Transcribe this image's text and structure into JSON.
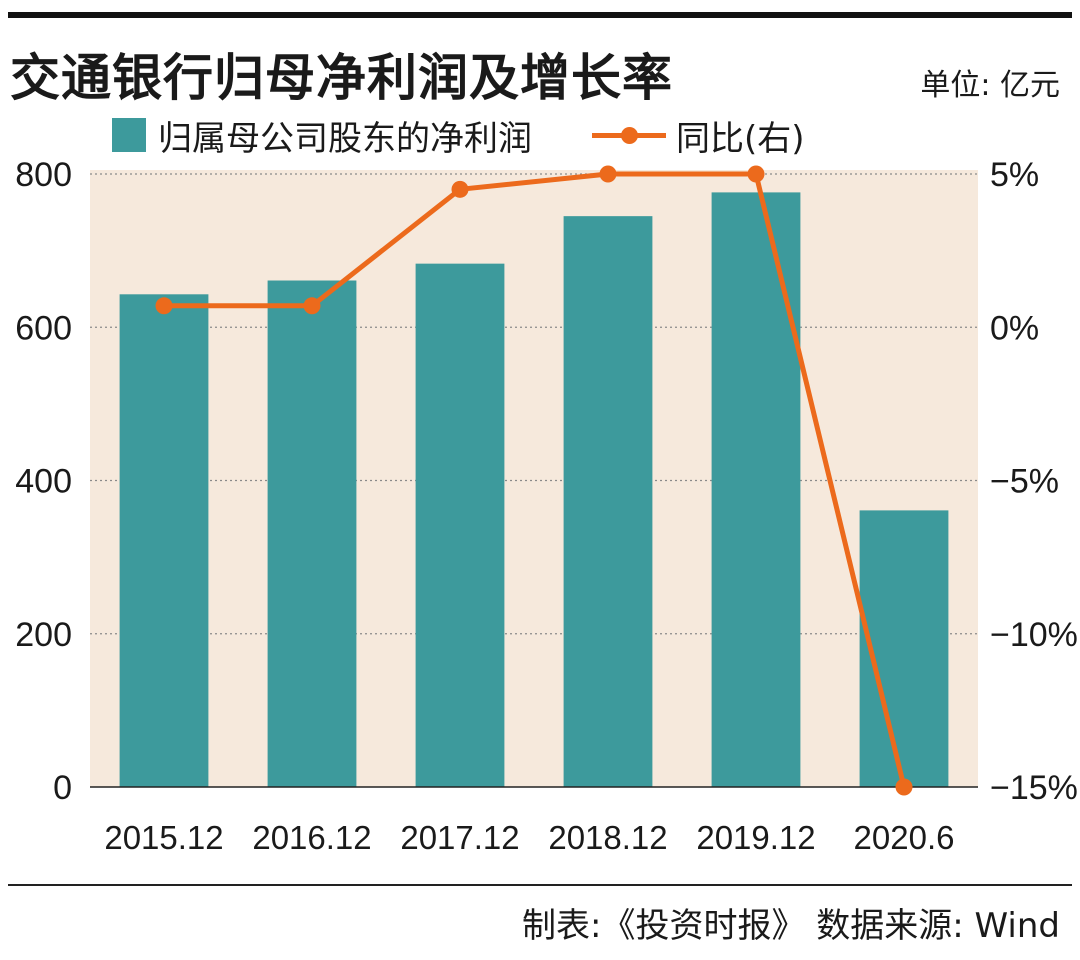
{
  "title": "交通银行归母净利润及增长率",
  "unit": "单位: 亿元",
  "source": "制表:《投资时报》 数据来源: Wind",
  "colors": {
    "bar": "#3d9a9c",
    "line": "#ec6a1c",
    "plot_bg": "#f6e9dc",
    "grid": "#8a8a8a",
    "axis": "#222222"
  },
  "chart_data": {
    "type": "bar",
    "categories": [
      "2015.12",
      "2016.12",
      "2017.12",
      "2018.12",
      "2019.12",
      "2020.6"
    ],
    "series": [
      {
        "name": "归属母公司股东的净利润",
        "type": "bar",
        "axis": "left",
        "values": [
          643,
          661,
          683,
          745,
          776,
          361
        ]
      },
      {
        "name": "同比(右)",
        "type": "line",
        "axis": "right",
        "values": [
          0.7,
          0.7,
          4.5,
          5.0,
          5.0,
          -15.0
        ]
      }
    ],
    "y_left": {
      "min": 0,
      "max": 800,
      "ticks": [
        0,
        200,
        400,
        600,
        800
      ],
      "tick_labels": [
        "0",
        "200",
        "400",
        "600",
        "800"
      ]
    },
    "y_right": {
      "min": -15,
      "max": 5,
      "ticks": [
        -15,
        -10,
        -5,
        0,
        5
      ],
      "tick_labels": [
        "−15%",
        "−10%",
        "−5%",
        "0%",
        "5%"
      ]
    },
    "grid": true,
    "legend_position": "top"
  }
}
